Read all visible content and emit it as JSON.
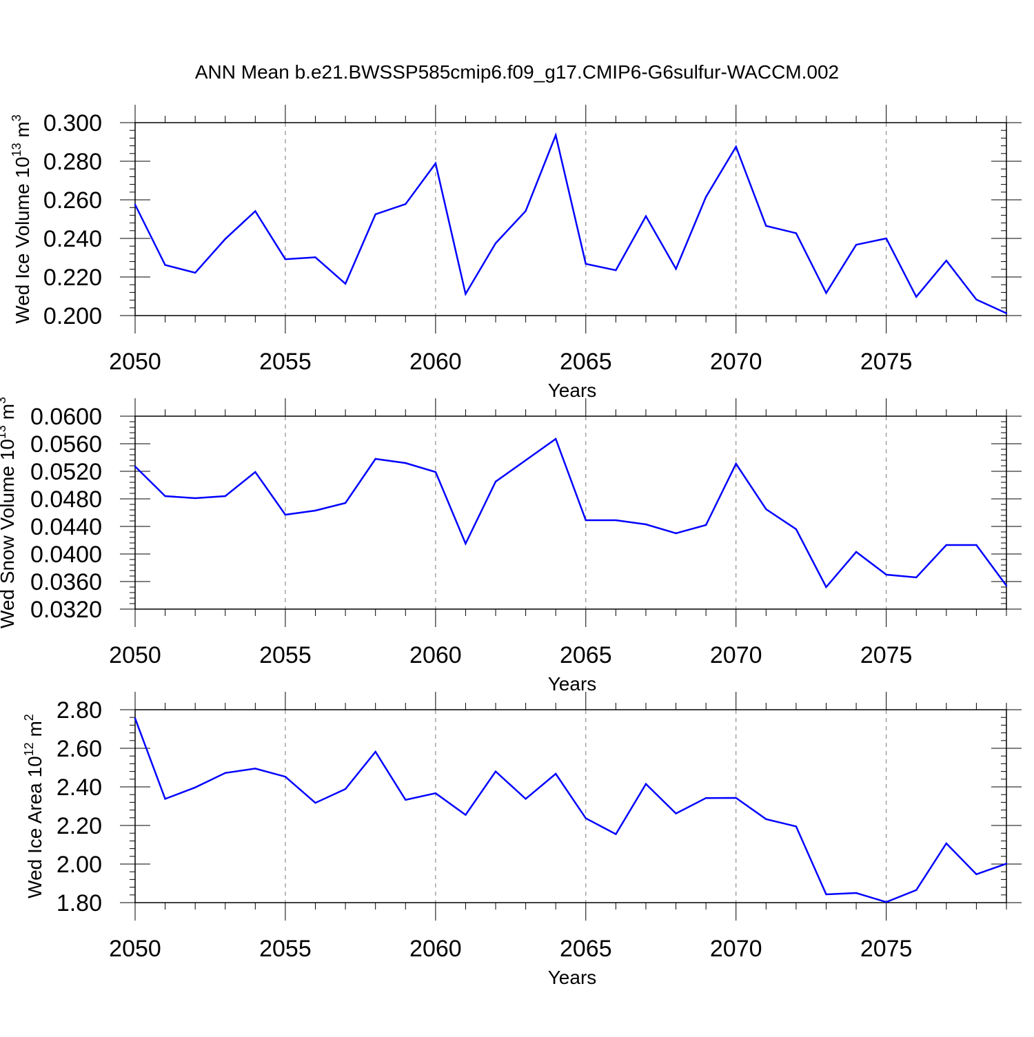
{
  "figure": {
    "title": "ANN Mean b.e21.BWSSP585cmip6.f09_g17.CMIP6-G6sulfur-WACCM.002",
    "line_color": "#0000ff"
  },
  "chart_data": [
    {
      "type": "line",
      "title": "",
      "xlabel": "Years",
      "ylabel": "Wed Ice Volume 10",
      "ylabel_exp": "13",
      "ylabel_unit": " m",
      "ylabel_unit_exp": "3",
      "xlim": [
        2050,
        2079
      ],
      "ylim": [
        0.2,
        0.3
      ],
      "xticks": [
        2050,
        2055,
        2060,
        2065,
        2070,
        2075
      ],
      "xtick_labels": [
        "2050",
        "2055",
        "2060",
        "2065",
        "2070",
        "2075"
      ],
      "yticks": [
        0.2,
        0.22,
        0.24,
        0.26,
        0.28,
        0.3
      ],
      "ytick_labels": [
        "0.200",
        "0.220",
        "0.240",
        "0.260",
        "0.280",
        "0.300"
      ],
      "y_minor_step": 0.004,
      "grid": "vertical dashed at major x ticks",
      "x": [
        2050,
        2051,
        2052,
        2053,
        2054,
        2055,
        2056,
        2057,
        2058,
        2059,
        2060,
        2061,
        2062,
        2063,
        2064,
        2065,
        2066,
        2067,
        2068,
        2069,
        2070,
        2071,
        2072,
        2073,
        2074,
        2075,
        2076,
        2077,
        2078,
        2079
      ],
      "values": [
        0.2575,
        0.2262,
        0.2222,
        0.2397,
        0.2541,
        0.2292,
        0.2302,
        0.2165,
        0.2525,
        0.2578,
        0.2789,
        0.2112,
        0.2375,
        0.2542,
        0.2935,
        0.2268,
        0.2235,
        0.2515,
        0.2242,
        0.2615,
        0.2875,
        0.2465,
        0.2427,
        0.2117,
        0.2367,
        0.24,
        0.2097,
        0.2285,
        0.2083,
        0.2012
      ]
    },
    {
      "type": "line",
      "title": "",
      "xlabel": "Years",
      "ylabel": "Wed Snow Volume 10",
      "ylabel_exp": "13",
      "ylabel_unit": " m",
      "ylabel_unit_exp": "3",
      "xlim": [
        2050,
        2079
      ],
      "ylim": [
        0.032,
        0.06
      ],
      "xticks": [
        2050,
        2055,
        2060,
        2065,
        2070,
        2075
      ],
      "xtick_labels": [
        "2050",
        "2055",
        "2060",
        "2065",
        "2070",
        "2075"
      ],
      "yticks": [
        0.032,
        0.036,
        0.04,
        0.044,
        0.048,
        0.052,
        0.056,
        0.06
      ],
      "ytick_labels": [
        "0.0320",
        "0.0360",
        "0.0400",
        "0.0440",
        "0.0480",
        "0.0520",
        "0.0560",
        "0.0600"
      ],
      "y_minor_step": 0.0008,
      "grid": "vertical dashed at major x ticks",
      "x": [
        2050,
        2051,
        2052,
        2053,
        2054,
        2055,
        2056,
        2057,
        2058,
        2059,
        2060,
        2061,
        2062,
        2063,
        2064,
        2065,
        2066,
        2067,
        2068,
        2069,
        2070,
        2071,
        2072,
        2073,
        2074,
        2075,
        2076,
        2077,
        2078,
        2079
      ],
      "values": [
        0.0527,
        0.0484,
        0.0481,
        0.0484,
        0.0519,
        0.0457,
        0.0463,
        0.0474,
        0.0538,
        0.0532,
        0.0519,
        0.0415,
        0.0505,
        0.0536,
        0.0567,
        0.0449,
        0.0449,
        0.0443,
        0.043,
        0.0442,
        0.0531,
        0.0465,
        0.0436,
        0.0352,
        0.0403,
        0.037,
        0.0366,
        0.0413,
        0.0413,
        0.0354
      ]
    },
    {
      "type": "line",
      "title": "",
      "xlabel": "Years",
      "ylabel": "Wed Ice Area 10",
      "ylabel_exp": "12",
      "ylabel_unit": " m",
      "ylabel_unit_exp": "2",
      "xlim": [
        2050,
        2079
      ],
      "ylim": [
        1.8,
        2.8
      ],
      "xticks": [
        2050,
        2055,
        2060,
        2065,
        2070,
        2075
      ],
      "xtick_labels": [
        "2050",
        "2055",
        "2060",
        "2065",
        "2070",
        "2075"
      ],
      "yticks": [
        1.8,
        2.0,
        2.2,
        2.4,
        2.6,
        2.8
      ],
      "ytick_labels": [
        "1.80",
        "2.00",
        "2.20",
        "2.40",
        "2.60",
        "2.80"
      ],
      "y_minor_step": 0.04,
      "grid": "vertical dashed at major x ticks",
      "x": [
        2050,
        2051,
        2052,
        2053,
        2054,
        2055,
        2056,
        2057,
        2058,
        2059,
        2060,
        2061,
        2062,
        2063,
        2064,
        2065,
        2066,
        2067,
        2068,
        2069,
        2070,
        2071,
        2072,
        2073,
        2074,
        2075,
        2076,
        2077,
        2078,
        2079
      ],
      "values": [
        2.755,
        2.338,
        2.397,
        2.472,
        2.495,
        2.453,
        2.317,
        2.389,
        2.582,
        2.333,
        2.367,
        2.255,
        2.48,
        2.338,
        2.468,
        2.237,
        2.155,
        2.415,
        2.262,
        2.342,
        2.343,
        2.233,
        2.195,
        1.843,
        1.85,
        1.803,
        1.865,
        2.107,
        1.947,
        2.002
      ]
    }
  ]
}
